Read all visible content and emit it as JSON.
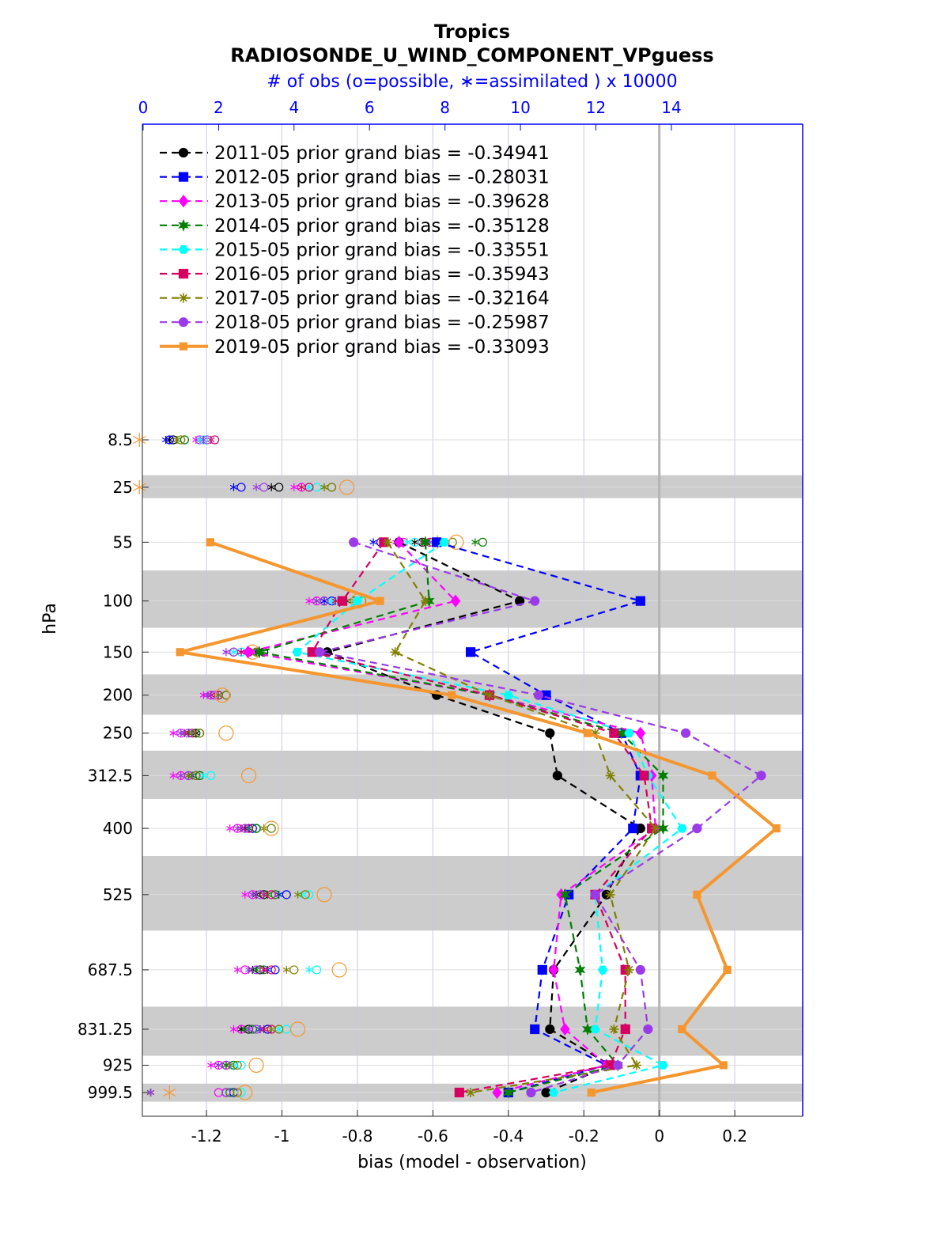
{
  "chart_data": {
    "type": "line",
    "title": "Tropics",
    "subtitle": "RADIOSONDE_U_WIND_COMPONENT_VPguess",
    "top_axis_label": "# of obs (o=possible, ∗=assimilated ) x 10000",
    "xlabel": "bias (model - observation)",
    "ylabel": "hPa",
    "xlim": [
      -1.37,
      0.38
    ],
    "top_xlim": [
      -0.02,
      17.48
    ],
    "x_ticks": [
      -1.2,
      -1,
      -0.8,
      -0.6,
      -0.4,
      -0.2,
      0,
      0.2
    ],
    "x_tick_labels": [
      "-1.2",
      "-1",
      "-0.8",
      "-0.6",
      "-0.4",
      "-0.2",
      "0",
      "0.2"
    ],
    "top_ticks": [
      0,
      2,
      4,
      6,
      8,
      10,
      12,
      14
    ],
    "top_tick_labels": [
      "0",
      "2",
      "4",
      "6",
      "8",
      "10",
      "12",
      "14"
    ],
    "levels": [
      8.5,
      25,
      55,
      100,
      150,
      200,
      250,
      312.5,
      400,
      525,
      687.5,
      831.25,
      925,
      999.5
    ],
    "level_labels": [
      "8.5",
      "25",
      "55",
      "100",
      "150",
      "200",
      "250",
      "312.5",
      "400",
      "525",
      "687.5",
      "831.25",
      "925",
      "999.5"
    ],
    "shaded_bands": [
      [
        20,
        30
      ],
      [
        75,
        125
      ],
      [
        175,
        225
      ],
      [
        275,
        350
      ],
      [
        450,
        600
      ],
      [
        775,
        900
      ],
      [
        975,
        1025
      ]
    ],
    "zero_line": 0,
    "series": [
      {
        "name": "2011-05",
        "legend": "2011-05 prior grand bias = -0.34941",
        "color": "#000000",
        "marker": "circle",
        "line": "dashed",
        "bias": [
          null,
          null,
          -0.69,
          -0.37,
          -0.88,
          -0.59,
          -0.29,
          -0.27,
          -0.05,
          -0.14,
          -0.28,
          -0.29,
          -0.13,
          -0.3
        ],
        "possible": [
          0.8,
          3.6,
          7.4,
          4.8,
          3.2,
          2.2,
          1.5,
          1.4,
          3.0,
          3.2,
          3.1,
          2.8,
          2.2,
          2.2
        ],
        "assimilated": [
          0.7,
          3.4,
          7.2,
          4.6,
          3.0,
          2.0,
          1.4,
          1.2,
          2.8,
          3.0,
          2.9,
          2.6,
          2.0,
          0.2
        ]
      },
      {
        "name": "2012-05",
        "legend": "2012-05 prior grand bias = -0.28031",
        "color": "#0000ff",
        "marker": "square",
        "line": "dashed",
        "bias": [
          null,
          null,
          -0.59,
          -0.05,
          -0.5,
          -0.3,
          -0.1,
          -0.05,
          -0.07,
          -0.24,
          -0.31,
          -0.33,
          -0.14,
          -0.4
        ],
        "possible": [
          0.7,
          2.6,
          6.3,
          5.0,
          2.8,
          2.0,
          1.4,
          1.5,
          2.9,
          3.8,
          3.5,
          3.3,
          2.4,
          2.4
        ],
        "assimilated": [
          0.6,
          2.4,
          6.1,
          4.8,
          2.6,
          1.8,
          1.2,
          1.3,
          2.7,
          3.6,
          3.3,
          3.1,
          2.2,
          0.2
        ]
      },
      {
        "name": "2013-05",
        "legend": "2013-05 prior grand bias = -0.39628",
        "color": "#ff00ff",
        "marker": "diamond",
        "line": "dashed",
        "bias": [
          null,
          null,
          -0.69,
          -0.54,
          -1.09,
          -0.45,
          -0.05,
          -0.02,
          -0.01,
          -0.26,
          -0.28,
          -0.25,
          -0.14,
          -0.43
        ],
        "possible": [
          1.5,
          4.2,
          6.9,
          4.6,
          2.4,
          1.8,
          1.0,
          1.0,
          2.5,
          2.9,
          2.7,
          2.6,
          2.0,
          2.0
        ],
        "assimilated": [
          1.4,
          4.0,
          6.7,
          4.4,
          2.2,
          1.6,
          0.8,
          0.8,
          2.3,
          2.7,
          2.5,
          2.4,
          1.8,
          0.2
        ]
      },
      {
        "name": "2014-05",
        "legend": "2014-05 prior grand bias = -0.35128",
        "color": "#007f00",
        "marker": "hexagram",
        "line": "dashed",
        "bias": [
          null,
          null,
          -0.62,
          -0.61,
          -1.06,
          -0.45,
          -0.1,
          0.01,
          0.01,
          -0.25,
          -0.21,
          -0.19,
          -0.11,
          -0.4
        ],
        "possible": [
          1.1,
          5.0,
          9.0,
          5.6,
          3.0,
          2.2,
          1.4,
          1.5,
          3.0,
          3.5,
          3.2,
          2.9,
          2.4,
          2.3
        ],
        "assimilated": [
          0.9,
          4.8,
          8.8,
          5.4,
          2.8,
          2.0,
          1.2,
          1.3,
          2.8,
          3.3,
          3.0,
          2.7,
          2.2,
          0.2
        ]
      },
      {
        "name": "2015-05",
        "legend": "2015-05 prior grand bias = -0.33551",
        "color": "#00ffff",
        "marker": "hexagon",
        "line": "dashed",
        "bias": [
          null,
          null,
          -0.57,
          -0.8,
          -0.96,
          -0.4,
          -0.08,
          -0.03,
          0.06,
          -0.17,
          -0.15,
          -0.17,
          0.01,
          -0.28
        ],
        "possible": [
          1.6,
          4.6,
          7.2,
          5.2,
          2.6,
          2.0,
          1.2,
          1.8,
          3.4,
          4.4,
          4.6,
          3.8,
          2.6,
          2.6
        ],
        "assimilated": [
          1.5,
          4.4,
          7.0,
          5.0,
          2.4,
          1.8,
          1.0,
          1.6,
          3.2,
          4.2,
          4.4,
          3.6,
          2.4,
          0.2
        ]
      },
      {
        "name": "2016-05",
        "legend": "2016-05 prior grand bias = -0.35943",
        "color": "#d60060",
        "marker": "square",
        "line": "dashed",
        "bias": [
          null,
          null,
          -0.73,
          -0.84,
          -0.92,
          -0.45,
          -0.12,
          -0.04,
          -0.02,
          -0.17,
          -0.09,
          -0.09,
          -0.13,
          -0.53
        ],
        "possible": [
          1.9,
          4.4,
          7.6,
          5.3,
          2.8,
          2.0,
          1.3,
          1.2,
          2.8,
          3.4,
          3.4,
          3.4,
          2.2,
          2.2
        ],
        "assimilated": [
          1.8,
          4.2,
          7.4,
          5.1,
          2.6,
          1.8,
          1.1,
          1.0,
          2.6,
          3.2,
          3.2,
          3.2,
          2.0,
          0.2
        ]
      },
      {
        "name": "2017-05",
        "legend": "2017-05 prior grand bias = -0.32164",
        "color": "#808000",
        "marker": "asterisk",
        "line": "dashed",
        "bias": [
          null,
          null,
          -0.72,
          -0.62,
          -0.7,
          -0.45,
          -0.17,
          -0.13,
          -0.01,
          -0.13,
          -0.08,
          -0.12,
          -0.06,
          -0.5
        ],
        "possible": [
          1.0,
          5.0,
          8.2,
          5.8,
          3.0,
          2.2,
          1.5,
          1.4,
          3.4,
          4.3,
          4.0,
          3.6,
          2.5,
          2.5
        ],
        "assimilated": [
          0.9,
          4.8,
          8.0,
          5.6,
          2.8,
          2.0,
          1.3,
          1.2,
          3.2,
          4.1,
          3.8,
          3.4,
          2.3,
          0.2
        ]
      },
      {
        "name": "2018-05",
        "legend": "2018-05 prior grand bias = -0.25987",
        "color": "#9a3ae8",
        "marker": "circle",
        "line": "dashed",
        "bias": [
          null,
          null,
          -0.81,
          -0.33,
          -0.9,
          -0.32,
          0.07,
          0.27,
          0.1,
          -0.17,
          -0.05,
          -0.03,
          -0.11,
          -0.34
        ],
        "possible": [
          1.7,
          3.2,
          7.8,
          4.8,
          2.4,
          1.9,
          1.2,
          1.2,
          2.7,
          3.1,
          3.0,
          3.0,
          2.2,
          2.2
        ],
        "assimilated": [
          1.6,
          3.0,
          7.6,
          4.6,
          2.2,
          1.7,
          1.0,
          1.0,
          2.5,
          2.9,
          2.8,
          2.8,
          2.0,
          0.2
        ]
      },
      {
        "name": "2019-05",
        "legend": "2019-05 prior grand bias = -0.33093",
        "color": "#f5962e",
        "marker": "square",
        "line": "solid",
        "bias": [
          null,
          null,
          -1.19,
          -0.74,
          -1.27,
          -0.55,
          -0.19,
          0.14,
          0.31,
          0.1,
          0.18,
          0.06,
          0.17,
          -0.18
        ],
        "possible": [
          null,
          5.4,
          8.3,
          5.7,
          2.9,
          2.1,
          2.2,
          2.8,
          3.4,
          4.8,
          5.2,
          4.1,
          3.0,
          2.7
        ],
        "assimilated": [
          -0.1,
          -0.1,
          7.8,
          null,
          null,
          null,
          null,
          null,
          null,
          null,
          null,
          null,
          null,
          0.7
        ]
      }
    ]
  }
}
